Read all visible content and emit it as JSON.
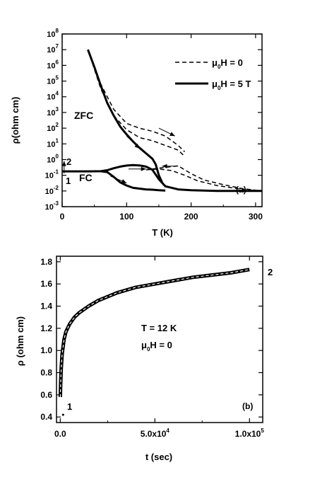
{
  "chart_data": [
    {
      "type": "line",
      "panel_label": "(a)",
      "xlabel": "T (K)",
      "ylabel": "ρ(ohm cm)",
      "xlim": [
        0,
        310
      ],
      "ylim_log10": [
        -3,
        8
      ],
      "y_scale": "log",
      "x_ticks": [
        0,
        100,
        200,
        300
      ],
      "x_tick_labels": [
        "0",
        "100",
        "200",
        "300"
      ],
      "y_tick_exponents": [
        -3,
        -2,
        -1,
        0,
        1,
        2,
        3,
        4,
        5,
        6,
        7,
        8
      ],
      "y_tick_labels": [
        {
          "base": "10",
          "exp": "-3"
        },
        {
          "base": "10",
          "exp": "-2"
        },
        {
          "base": "10",
          "exp": "-1"
        },
        {
          "base": "10",
          "exp": "0"
        },
        {
          "base": "10",
          "exp": "1"
        },
        {
          "base": "10",
          "exp": "2"
        },
        {
          "base": "10",
          "exp": "3"
        },
        {
          "base": "10",
          "exp": "4"
        },
        {
          "base": "10",
          "exp": "5"
        },
        {
          "base": "10",
          "exp": "6"
        },
        {
          "base": "10",
          "exp": "7"
        },
        {
          "base": "10",
          "exp": "8"
        }
      ],
      "legend_position": "top-right",
      "legend": [
        {
          "prefix": "μ",
          "sub": "0",
          "suffix": "H = 0",
          "style": "dashed"
        },
        {
          "prefix": "μ",
          "sub": "0",
          "suffix": "H = 5 T",
          "style": "solid"
        }
      ],
      "annotations": {
        "zfc": "ZFC",
        "fc": "FC",
        "point1": "1",
        "point2": "2"
      },
      "series": [
        {
          "style": "dashed",
          "x": [
            40,
            60,
            80,
            100,
            120,
            140,
            160,
            180,
            190
          ],
          "log_y": [
            7,
            4.8,
            3.2,
            2.3,
            2.0,
            1.8,
            1.5,
            0.9,
            0.5
          ]
        },
        {
          "style": "dashed",
          "x": [
            40,
            60,
            80,
            100,
            120,
            140,
            160,
            180,
            190
          ],
          "log_y": [
            7,
            4.5,
            2.8,
            1.9,
            1.4,
            1.2,
            0.9,
            0.6,
            0.2
          ]
        },
        {
          "style": "dashed",
          "x": [
            140,
            160,
            180,
            200,
            220,
            250,
            280,
            310
          ],
          "log_y": [
            -0.6,
            -0.5,
            -0.4,
            -0.9,
            -1.3,
            -1.6,
            -1.85,
            -2.0
          ]
        },
        {
          "style": "dashed",
          "x": [
            130,
            150,
            170,
            190,
            210,
            240,
            280,
            310
          ],
          "log_y": [
            -0.65,
            -0.6,
            -0.7,
            -1.0,
            -1.35,
            -1.65,
            -1.9,
            -2.0
          ]
        },
        {
          "style": "solid",
          "x": [
            40,
            50,
            60,
            70,
            80,
            90,
            100,
            110,
            120,
            130,
            140,
            145,
            150,
            155
          ],
          "log_y": [
            7,
            5.9,
            4.7,
            3.6,
            2.8,
            2.1,
            1.6,
            1.15,
            0.75,
            0.4,
            0.05,
            -0.3,
            -1.0,
            -1.45
          ]
        },
        {
          "style": "solid",
          "x": [
            0,
            20,
            40,
            60,
            70,
            80,
            90,
            100,
            110,
            120,
            130,
            140,
            150,
            160,
            180,
            200,
            240,
            280,
            310
          ],
          "log_y": [
            -0.75,
            -0.75,
            -0.75,
            -0.74,
            -0.68,
            -0.55,
            -0.45,
            -0.38,
            -0.35,
            -0.37,
            -0.45,
            -0.65,
            -1.25,
            -1.7,
            -1.9,
            -1.95,
            -2.0,
            -2.0,
            -2.0
          ]
        },
        {
          "style": "solid",
          "x": [
            60,
            70,
            80,
            90,
            100,
            110,
            120,
            130,
            140,
            150,
            160
          ],
          "log_y": [
            -0.74,
            -0.8,
            -1.1,
            -1.45,
            -1.65,
            -1.8,
            -1.85,
            -1.9,
            -1.92,
            -1.95,
            -1.97
          ]
        }
      ],
      "arrows": [
        {
          "from": [
            103,
            -0.6
          ],
          "to": [
            130,
            -0.6
          ]
        },
        {
          "from": [
            75,
            -1.05
          ],
          "to": [
            100,
            -1.5
          ]
        },
        {
          "from": [
            100,
            1.5
          ],
          "to": [
            120,
            0.7
          ]
        },
        {
          "from": [
            150,
            2.0
          ],
          "to": [
            175,
            1.5
          ]
        },
        {
          "from": [
            180,
            -0.42
          ],
          "to": [
            155,
            -0.42
          ]
        },
        {
          "from": [
            3,
            -0.88
          ],
          "to": [
            3,
            -0.1
          ]
        }
      ]
    },
    {
      "type": "line",
      "panel_label": "(b)",
      "xlabel": "t (sec)",
      "ylabel": "ρ (ohm cm)",
      "xlim": [
        -2000,
        107000
      ],
      "ylim": [
        0.35,
        1.85
      ],
      "x_ticks": [
        0,
        50000,
        100000
      ],
      "x_tick_labels": [
        {
          "base": "0.0",
          "exp": ""
        },
        {
          "base": "5.0x10",
          "exp": "4"
        },
        {
          "base": "1.0x10",
          "exp": "5"
        }
      ],
      "y_ticks": [
        0.4,
        0.6,
        0.8,
        1.0,
        1.2,
        1.4,
        1.6,
        1.8
      ],
      "y_tick_labels": [
        "0.4",
        "0.6",
        "0.8",
        "1.0",
        "1.2",
        "1.4",
        "1.6",
        "1.8"
      ],
      "annotations": {
        "temperature": "T = 12 K",
        "field": {
          "prefix": "μ",
          "sub": "0",
          "suffix": "H = 0"
        },
        "point1": "1",
        "point2": "2"
      },
      "series": [
        {
          "style": "solid-thick",
          "x": [
            0,
            200,
            500,
            1000,
            2000,
            3000,
            5000,
            7500,
            10000,
            15000,
            20000,
            30000,
            40000,
            50000,
            60000,
            70000,
            80000,
            90000,
            100000
          ],
          "y": [
            0.58,
            0.7,
            0.84,
            0.97,
            1.1,
            1.17,
            1.24,
            1.3,
            1.34,
            1.4,
            1.45,
            1.52,
            1.57,
            1.6,
            1.63,
            1.66,
            1.68,
            1.7,
            1.73
          ]
        }
      ]
    }
  ]
}
